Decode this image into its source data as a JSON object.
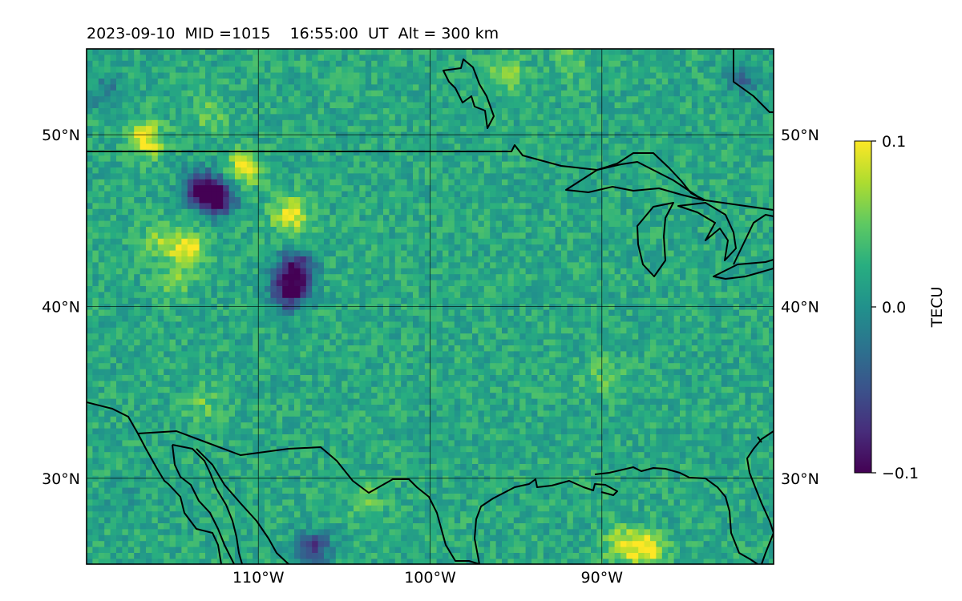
{
  "chart_data": {
    "type": "heatmap",
    "title": "2023-09-10  MID =1015    16:55:00  UT  Alt = 300 km",
    "map": {
      "lon_range": [
        -120,
        -80
      ],
      "lat_range": [
        25,
        55
      ],
      "x_ticks": [
        {
          "value": -110,
          "label": "110°W"
        },
        {
          "value": -100,
          "label": "100°W"
        },
        {
          "value": -90,
          "label": "90°W"
        }
      ],
      "y_ticks": [
        {
          "value": 50,
          "label": "50°N"
        },
        {
          "value": 40,
          "label": "40°N"
        },
        {
          "value": 30,
          "label": "30°N"
        }
      ],
      "grid": true,
      "coastlines": true,
      "borders": true
    },
    "colorbar": {
      "label": "TECU",
      "range": [
        -0.1,
        0.1
      ],
      "ticks": [
        {
          "value": 0.1,
          "label": "0.1"
        },
        {
          "value": 0.0,
          "label": "0.0"
        },
        {
          "value": -0.1,
          "label": "−0.1"
        }
      ],
      "colormap": "viridis",
      "colormap_stops": [
        "#440154",
        "#472d7b",
        "#3b528b",
        "#2c728e",
        "#21918c",
        "#28ae80",
        "#5ec962",
        "#addc30",
        "#fde725"
      ]
    },
    "field": {
      "background_value": 0.02,
      "features": [
        {
          "lon": -95.7,
          "lat": 53.7,
          "value": 0.065
        },
        {
          "lon": -92.0,
          "lat": 54.5,
          "value": 0.05
        },
        {
          "lon": -116.7,
          "lat": 49.9,
          "value": 0.1
        },
        {
          "lon": -111.0,
          "lat": 48.2,
          "value": 0.09
        },
        {
          "lon": -108.3,
          "lat": 45.5,
          "value": 0.1
        },
        {
          "lon": -114.3,
          "lat": 43.4,
          "value": 0.1
        },
        {
          "lon": -113.5,
          "lat": 47.0,
          "value": -0.09
        },
        {
          "lon": -112.5,
          "lat": 46.5,
          "value": -0.1
        },
        {
          "lon": -108.0,
          "lat": 42.3,
          "value": -0.1
        },
        {
          "lon": -108.4,
          "lat": 41.0,
          "value": -0.095
        },
        {
          "lon": -116.0,
          "lat": 44.0,
          "value": 0.06
        },
        {
          "lon": -115.0,
          "lat": 41.5,
          "value": 0.05
        },
        {
          "lon": -113.0,
          "lat": 51.3,
          "value": 0.05
        },
        {
          "lon": -107.0,
          "lat": 26.0,
          "value": -0.07
        },
        {
          "lon": -87.5,
          "lat": 26.0,
          "value": 0.1
        },
        {
          "lon": -89.0,
          "lat": 26.3,
          "value": 0.08
        },
        {
          "lon": -90.0,
          "lat": 36.2,
          "value": 0.05
        },
        {
          "lon": -104.0,
          "lat": 29.0,
          "value": 0.05
        },
        {
          "lon": -113.5,
          "lat": 34.5,
          "value": 0.05
        },
        {
          "lon": -119.0,
          "lat": 52.5,
          "value": -0.02
        },
        {
          "lon": -82.0,
          "lat": 53.5,
          "value": -0.03
        },
        {
          "lon": -118.0,
          "lat": 29.0,
          "value": 0.0
        }
      ]
    }
  }
}
